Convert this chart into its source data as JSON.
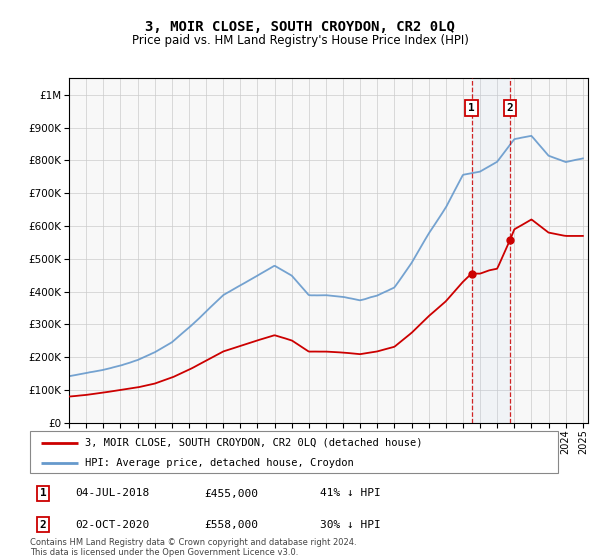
{
  "title": "3, MOIR CLOSE, SOUTH CROYDON, CR2 0LQ",
  "subtitle": "Price paid vs. HM Land Registry's House Price Index (HPI)",
  "legend_line1": "3, MOIR CLOSE, SOUTH CROYDON, CR2 0LQ (detached house)",
  "legend_line2": "HPI: Average price, detached house, Croydon",
  "annotation1_date": "04-JUL-2018",
  "annotation1_price": "£455,000",
  "annotation1_hpi": "41% ↓ HPI",
  "annotation2_date": "02-OCT-2020",
  "annotation2_price": "£558,000",
  "annotation2_hpi": "30% ↓ HPI",
  "transaction1_year": 2018.5,
  "transaction1_price": 455000,
  "transaction2_year": 2020.75,
  "transaction2_price": 558000,
  "footer": "Contains HM Land Registry data © Crown copyright and database right 2024.\nThis data is licensed under the Open Government Licence v3.0.",
  "red_color": "#cc0000",
  "blue_color": "#6699cc",
  "background_color": "#ffffff",
  "grid_color": "#cccccc",
  "hpi_years": [
    1995,
    1996,
    1997,
    1998,
    1999,
    2000,
    2001,
    2002,
    2003,
    2004,
    2005,
    2006,
    2007,
    2008,
    2009,
    2010,
    2011,
    2012,
    2013,
    2014,
    2015,
    2016,
    2017,
    2018,
    2019,
    2020,
    2021,
    2022,
    2023,
    2024,
    2025
  ],
  "hpi_values": [
    142000,
    152000,
    162000,
    175000,
    192000,
    215000,
    245000,
    290000,
    340000,
    390000,
    420000,
    450000,
    480000,
    450000,
    390000,
    390000,
    385000,
    375000,
    390000,
    415000,
    490000,
    580000,
    660000,
    760000,
    770000,
    800000,
    870000,
    880000,
    820000,
    800000,
    810000
  ],
  "red_years": [
    1995,
    1996,
    1997,
    1998,
    1999,
    2000,
    2001,
    2002,
    2003,
    2004,
    2005,
    2006,
    2007,
    2008,
    2009,
    2010,
    2011,
    2012,
    2013,
    2014,
    2015,
    2016,
    2017,
    2018,
    2018.5,
    2019,
    2019.5,
    2020,
    2020.75,
    2021,
    2022,
    2023,
    2024,
    2025
  ],
  "red_values": [
    80000,
    85000,
    92000,
    100000,
    108000,
    120000,
    138000,
    162000,
    190000,
    218000,
    235000,
    252000,
    268000,
    252000,
    218000,
    218000,
    215000,
    210000,
    218000,
    232000,
    274000,
    325000,
    370000,
    430000,
    455000,
    455000,
    465000,
    470000,
    558000,
    590000,
    620000,
    580000,
    570000,
    570000
  ]
}
